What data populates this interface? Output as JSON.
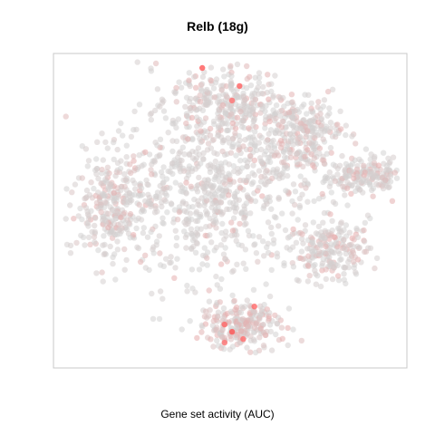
{
  "chart_data": {
    "type": "scatter",
    "title": "Relb (18g)",
    "xlabel": "Gene set activity (AUC)",
    "ylabel": "",
    "axes_visible": false,
    "grid": false,
    "legend": "none",
    "colors": {
      "low": "#d3d3d3",
      "high": "#ff0000",
      "frame": "#c8c8c8"
    },
    "clusters": [
      {
        "region": "central-main",
        "center": [
          -2,
          5
        ],
        "spread": [
          25,
          22
        ],
        "relative_density": 1.0,
        "mean_activity": 0.1
      },
      {
        "region": "upper-middle",
        "center": [
          2,
          28
        ],
        "spread": [
          14,
          8
        ],
        "relative_density": 0.35,
        "mean_activity": 0.25
      },
      {
        "region": "upper-right",
        "center": [
          22,
          20
        ],
        "spread": [
          10,
          9
        ],
        "relative_density": 0.3,
        "mean_activity": 0.3
      },
      {
        "region": "left",
        "center": [
          -30,
          0
        ],
        "spread": [
          9,
          14
        ],
        "relative_density": 0.35,
        "mean_activity": 0.3
      },
      {
        "region": "far-right",
        "center": [
          38,
          8
        ],
        "spread": [
          10,
          5
        ],
        "relative_density": 0.25,
        "mean_activity": 0.2
      },
      {
        "region": "right-lower",
        "center": [
          30,
          -12
        ],
        "spread": [
          9,
          7
        ],
        "relative_density": 0.25,
        "mean_activity": 0.35
      },
      {
        "region": "bottom",
        "center": [
          5,
          -33
        ],
        "spread": [
          10,
          6
        ],
        "relative_density": 0.3,
        "mean_activity": 0.45
      }
    ],
    "highlighted_points": [
      {
        "x": -5,
        "y": 38,
        "auc": 0.8
      },
      {
        "x": 5,
        "y": 33,
        "auc": 0.75
      },
      {
        "x": 3,
        "y": 29,
        "auc": 0.6
      },
      {
        "x": 9,
        "y": -28,
        "auc": 0.7
      },
      {
        "x": 3,
        "y": -35,
        "auc": 0.85
      },
      {
        "x": 1,
        "y": -33,
        "auc": 0.7
      },
      {
        "x": 6,
        "y": -37,
        "auc": 0.65
      },
      {
        "x": 1,
        "y": -38,
        "auc": 0.6
      }
    ],
    "xlim": [
      -45,
      50
    ],
    "ylim": [
      -45,
      42
    ]
  }
}
